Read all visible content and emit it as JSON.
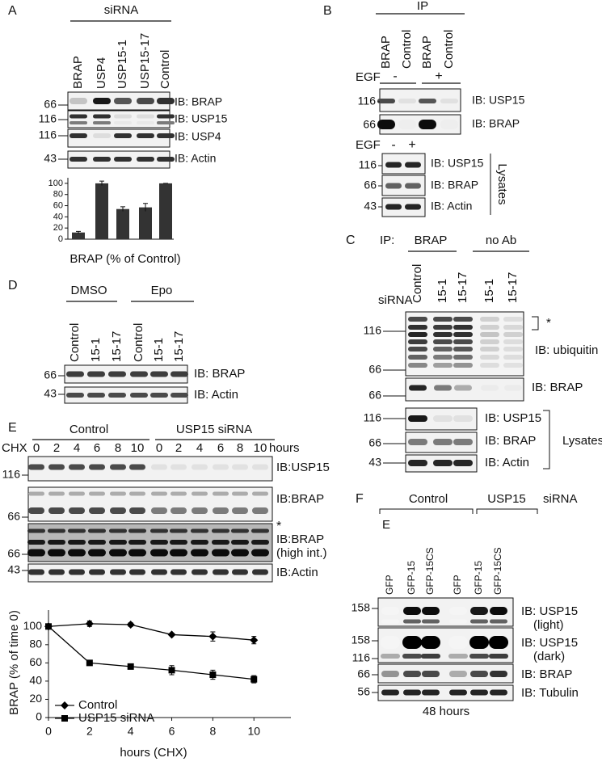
{
  "panels": {
    "A": {
      "label": "A",
      "header": "siRNA",
      "mw": [
        66,
        116,
        116,
        43
      ],
      "blots": [
        "IB: BRAP",
        "IB: USP15",
        "IB: USP4",
        "IB: Actin"
      ]
    },
    "B": {
      "label": "B",
      "header": "IP",
      "lanes": [
        "BRAP",
        "Control",
        "BRAP",
        "Control"
      ],
      "egf_label": "EGF",
      "egf": [
        "-",
        "+"
      ],
      "mw": [
        116,
        66
      ],
      "blots": [
        "IB: USP15",
        "IB: BRAP"
      ],
      "lysate_egf_label": "EGF",
      "lysate_egf": [
        "-",
        "+"
      ],
      "lysate_mw": [
        116,
        66,
        43
      ],
      "lysate_blots": [
        "IB: USP15",
        "IB: BRAP",
        "IB: Actin"
      ],
      "lysates": "Lysates"
    },
    "C": {
      "label": "C",
      "ip": "IP:",
      "groups": [
        "BRAP",
        "no Ab"
      ],
      "sirna": "siRNA",
      "lanes": [
        "Control",
        "15-1",
        "15-17",
        "15-1",
        "15-17"
      ],
      "mw": [
        116,
        66,
        66
      ],
      "star": "*",
      "blots": [
        "IB: ubiquitin",
        "IB: BRAP"
      ],
      "lysate_mw": [
        116,
        66,
        43
      ],
      "lysate_blots": [
        "IB: USP15",
        "IB: BRAP",
        "IB: Actin"
      ],
      "lysates": "Lysates"
    },
    "D": {
      "label": "D",
      "groups": [
        "DMSO",
        "Epo"
      ],
      "lanes": [
        "Control",
        "15-1",
        "15-17",
        "Control",
        "15-1",
        "15-17"
      ],
      "mw": [
        66,
        43
      ],
      "blots": [
        "IB: BRAP",
        "IB: Actin"
      ]
    },
    "E": {
      "label": "E",
      "groups": [
        "Control",
        "USP15 siRNA"
      ],
      "chx": "CHX",
      "hours": [
        0,
        2,
        4,
        6,
        8,
        10,
        0,
        2,
        4,
        6,
        8,
        10
      ],
      "hours_label": "hours",
      "mw": [
        116,
        66,
        66,
        43
      ],
      "star": "*",
      "blots": [
        [
          "IB:USP15"
        ],
        [
          "IB:BRAP"
        ],
        [
          "IB:BRAP",
          "(high int.)"
        ],
        [
          "IB:Actin"
        ]
      ]
    },
    "F": {
      "label": "F",
      "groups": [
        "Control",
        "USP15"
      ],
      "sirna": "siRNA",
      "stray": "E",
      "lanes": [
        "GFP",
        "GFP-15",
        "GFP-15CS",
        "GFP",
        "GFP-15",
        "GFP-15CS"
      ],
      "mw": [
        158,
        158,
        116,
        66,
        56
      ],
      "blots": [
        [
          "IB: USP15",
          "(light)"
        ],
        [
          "IB: USP15",
          "(dark)"
        ],
        [
          "IB: BRAP"
        ],
        [
          "IB: Tubulin"
        ]
      ],
      "footer": "48 hours"
    }
  },
  "chart_data": [
    {
      "type": "bar",
      "xlabel": "BRAP (% of Control)",
      "categories": [
        "BRAP",
        "USP4",
        "USP15-1",
        "USP15-17",
        "Control"
      ],
      "values": [
        12,
        100,
        54,
        57,
        100
      ],
      "errors": [
        2,
        4,
        4,
        7,
        0
      ],
      "color": "#333333",
      "ylim": [
        0,
        110
      ],
      "yticks": [
        0,
        20,
        40,
        60,
        80,
        100
      ]
    },
    {
      "type": "line",
      "xlabel": "hours (CHX)",
      "ylabel": "BRAP (% of time 0)",
      "x": [
        0,
        2,
        4,
        6,
        8,
        10
      ],
      "xlim": [
        0,
        11.8
      ],
      "xticks": [
        0,
        2,
        4,
        6,
        8,
        10
      ],
      "ylim": [
        0,
        118
      ],
      "yticks": [
        0,
        20,
        40,
        60,
        80,
        100
      ],
      "legend": "lower left",
      "series": [
        {
          "name": "Control",
          "color": "#000000",
          "marker": "diamond",
          "values": [
            100,
            103,
            102,
            91,
            89,
            85
          ],
          "errors": [
            0,
            3,
            2,
            1,
            5,
            4
          ]
        },
        {
          "name": "USP15 siRNA",
          "color": "#000000",
          "marker": "square",
          "values": [
            100,
            60,
            56,
            52,
            47,
            42
          ],
          "errors": [
            0,
            2,
            1,
            5,
            5,
            4
          ]
        }
      ]
    }
  ]
}
